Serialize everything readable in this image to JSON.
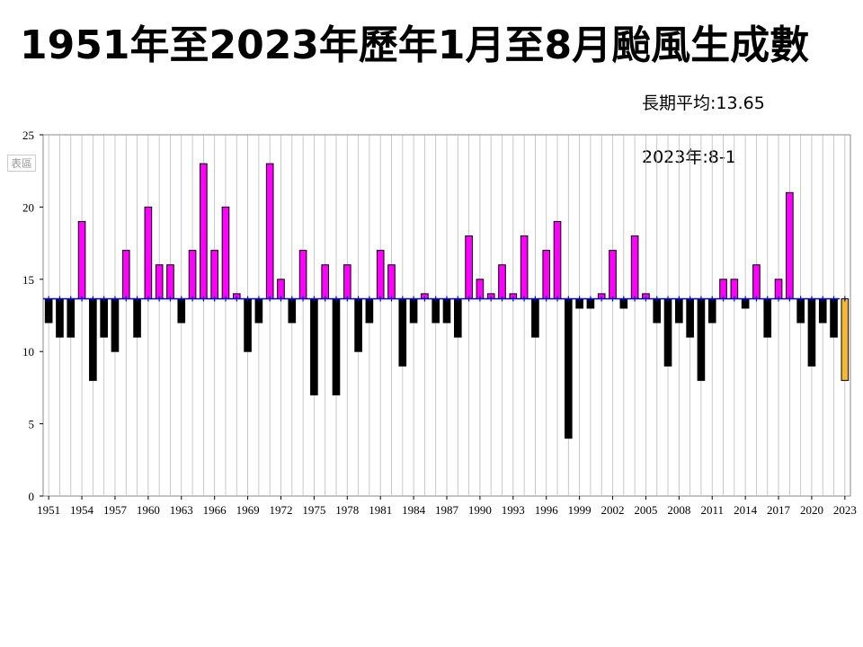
{
  "title": "1951年至2023年歷年1月至8月颱風生成數",
  "notes": {
    "average": "長期平均:13.65",
    "year2023": "2023年:8-1"
  },
  "watermark": "表區",
  "colors": {
    "above": "#ff00ff",
    "below": "#000000",
    "current": "#f5b82e",
    "avg_line": "#0000cc",
    "grid": "#bbbbbb"
  },
  "chart_data": {
    "type": "bar",
    "title": "1951年至2023年歷年1月至8月颱風生成數",
    "baseline": 13.65,
    "ylim": [
      0,
      25
    ],
    "yticks": [
      0,
      5,
      10,
      15,
      20,
      25
    ],
    "grid": true,
    "xtick_labels": [
      "1951",
      "1954",
      "1957",
      "1960",
      "1963",
      "1966",
      "1969",
      "1972",
      "1975",
      "1978",
      "1981",
      "1984",
      "1987",
      "1990",
      "1993",
      "1996",
      "1999",
      "2002",
      "2005",
      "2008",
      "2011",
      "2014",
      "2017",
      "2020",
      "2023"
    ],
    "categories": [
      1951,
      1952,
      1953,
      1954,
      1955,
      1956,
      1957,
      1958,
      1959,
      1960,
      1961,
      1962,
      1963,
      1964,
      1965,
      1966,
      1967,
      1968,
      1969,
      1970,
      1971,
      1972,
      1973,
      1974,
      1975,
      1976,
      1977,
      1978,
      1979,
      1980,
      1981,
      1982,
      1983,
      1984,
      1985,
      1986,
      1987,
      1988,
      1989,
      1990,
      1991,
      1992,
      1993,
      1994,
      1995,
      1996,
      1997,
      1998,
      1999,
      2000,
      2001,
      2002,
      2003,
      2004,
      2005,
      2006,
      2007,
      2008,
      2009,
      2010,
      2011,
      2012,
      2013,
      2014,
      2015,
      2016,
      2017,
      2018,
      2019,
      2020,
      2021,
      2022,
      2023
    ],
    "values": [
      12,
      11,
      11,
      19,
      8,
      11,
      10,
      17,
      11,
      20,
      16,
      16,
      12,
      17,
      23,
      17,
      20,
      14,
      10,
      12,
      23,
      15,
      12,
      17,
      7,
      16,
      7,
      16,
      10,
      12,
      17,
      16,
      9,
      12,
      14,
      12,
      12,
      11,
      18,
      15,
      14,
      16,
      14,
      18,
      11,
      17,
      19,
      4,
      13,
      13,
      14,
      17,
      13,
      18,
      14,
      12,
      9,
      12,
      11,
      8,
      12,
      15,
      15,
      13,
      16,
      11,
      15,
      21,
      12,
      9,
      12,
      11,
      8
    ]
  }
}
